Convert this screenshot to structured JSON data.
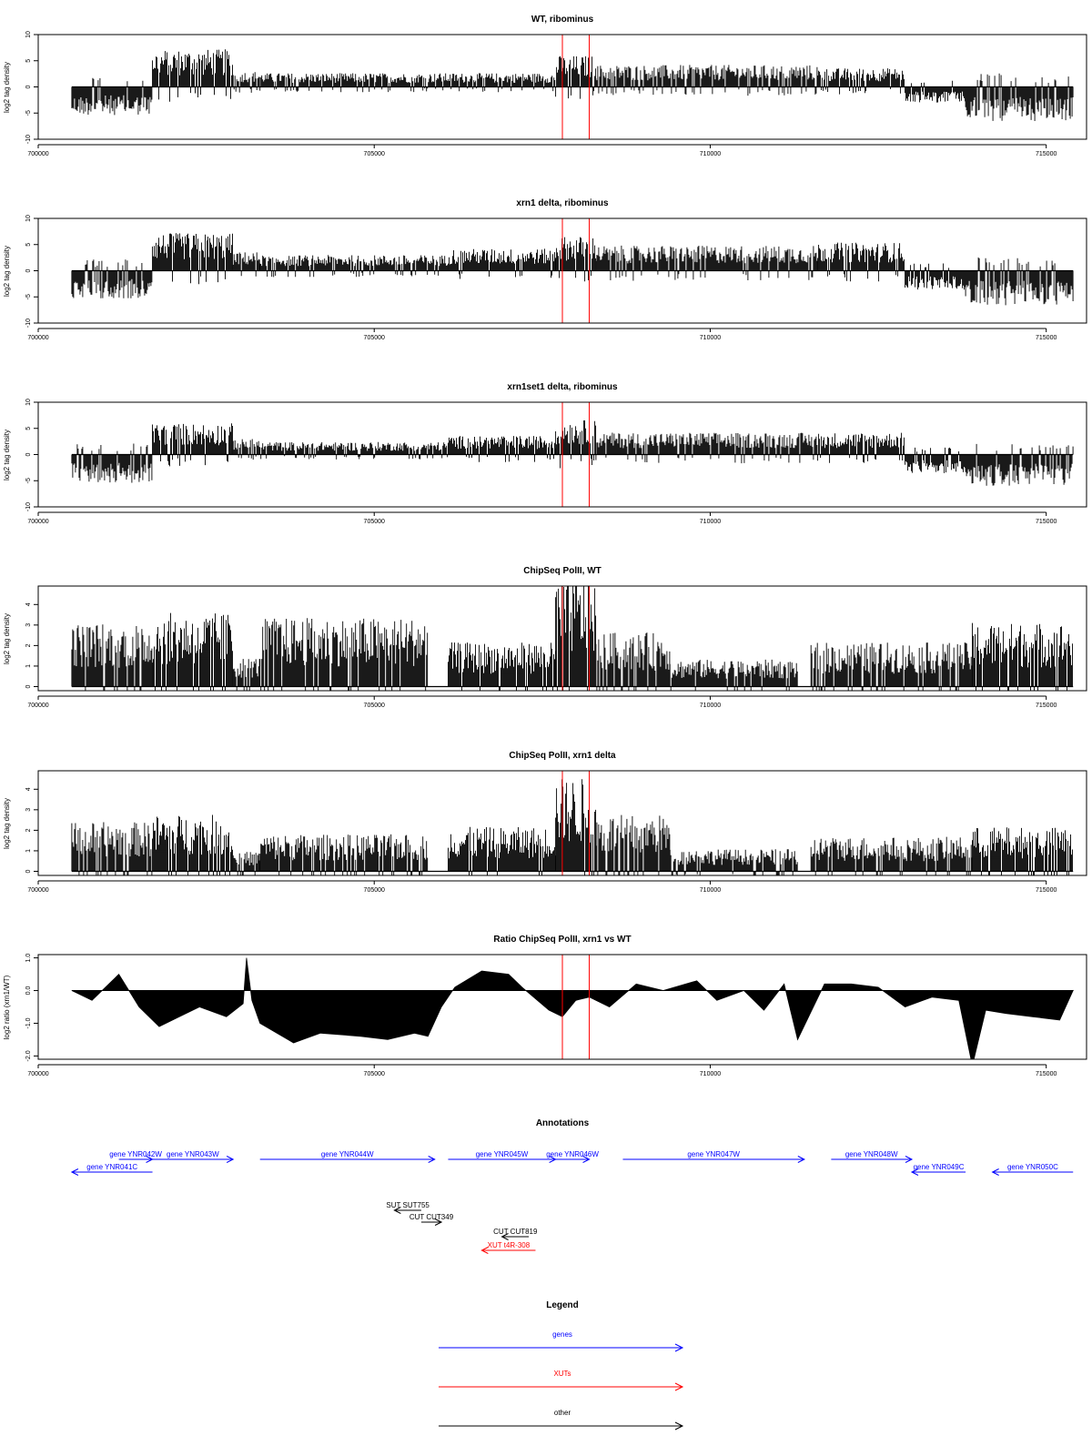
{
  "colors": {
    "gene": "#0000ff",
    "xut": "#ff0000",
    "other": "#000000",
    "marker": "#ff0000",
    "signal": "#000000"
  },
  "chart_data": [
    {
      "type": "bar",
      "title": "WT, ribominus",
      "ylabel": "log2 tag density",
      "xlim": [
        700000,
        715600
      ],
      "ylim": [
        -10,
        10
      ],
      "y_ticks": [
        10,
        5,
        0,
        -5,
        -10
      ],
      "y_tick_labels": [
        "10",
        "5",
        "0",
        "-5",
        "-10"
      ],
      "x_ticks": [
        700000,
        705000,
        710000,
        715000
      ],
      "x_tick_labels": [
        "700000",
        "705000",
        "710000",
        "715000"
      ],
      "markers": [
        707800,
        708200
      ],
      "signal_x_range": [
        700500,
        715400
      ],
      "signal_segments": [
        {
          "start": 700500,
          "end": 701700,
          "level": -4.5
        },
        {
          "start": 701700,
          "end": 702900,
          "level": 6.0
        },
        {
          "start": 702900,
          "end": 703300,
          "level": 2.5
        },
        {
          "start": 703300,
          "end": 707700,
          "level": 2.2
        },
        {
          "start": 707700,
          "end": 708300,
          "level": 5.0
        },
        {
          "start": 708300,
          "end": 711600,
          "level": 3.5
        },
        {
          "start": 711600,
          "end": 712900,
          "level": 3.0
        },
        {
          "start": 712900,
          "end": 713800,
          "level": -2.5
        },
        {
          "start": 713800,
          "end": 715400,
          "level": -5.5
        }
      ]
    },
    {
      "type": "bar",
      "title": "xrn1 delta, ribominus",
      "ylabel": "log2 tag density",
      "xlim": [
        700000,
        715600
      ],
      "ylim": [
        -10,
        10
      ],
      "y_ticks": [
        10,
        5,
        0,
        -5,
        -10
      ],
      "y_tick_labels": [
        "10",
        "5",
        "0",
        "-5",
        "-10"
      ],
      "x_ticks": [
        700000,
        705000,
        710000,
        715000
      ],
      "x_tick_labels": [
        "700000",
        "705000",
        "710000",
        "715000"
      ],
      "markers": [
        707800,
        708200
      ],
      "signal_x_range": [
        700500,
        715400
      ],
      "signal_segments": [
        {
          "start": 700500,
          "end": 701700,
          "level": -4.5
        },
        {
          "start": 701700,
          "end": 702900,
          "level": 6.0
        },
        {
          "start": 702900,
          "end": 703300,
          "level": 3.0
        },
        {
          "start": 703300,
          "end": 706100,
          "level": 2.5
        },
        {
          "start": 706100,
          "end": 707700,
          "level": 3.5
        },
        {
          "start": 707700,
          "end": 708300,
          "level": 5.5
        },
        {
          "start": 708300,
          "end": 711600,
          "level": 4.0
        },
        {
          "start": 711600,
          "end": 712900,
          "level": 4.5
        },
        {
          "start": 712900,
          "end": 713800,
          "level": -3.0
        },
        {
          "start": 713800,
          "end": 715400,
          "level": -5.5
        }
      ]
    },
    {
      "type": "bar",
      "title": "xrn1set1 delta, ribominus",
      "ylabel": "log2 tag density",
      "xlim": [
        700000,
        715600
      ],
      "ylim": [
        -10,
        10
      ],
      "y_ticks": [
        10,
        5,
        0,
        -5,
        -10
      ],
      "y_tick_labels": [
        "10",
        "5",
        "0",
        "-5",
        "-10"
      ],
      "x_ticks": [
        700000,
        705000,
        710000,
        715000
      ],
      "x_tick_labels": [
        "700000",
        "705000",
        "710000",
        "715000"
      ],
      "markers": [
        707800,
        708200
      ],
      "signal_x_range": [
        700500,
        715400
      ],
      "signal_segments": [
        {
          "start": 700500,
          "end": 701700,
          "level": -4.5
        },
        {
          "start": 701700,
          "end": 702900,
          "level": 5.0
        },
        {
          "start": 702900,
          "end": 703300,
          "level": 2.5
        },
        {
          "start": 703300,
          "end": 706100,
          "level": 2.0
        },
        {
          "start": 706100,
          "end": 707700,
          "level": 3.0
        },
        {
          "start": 707700,
          "end": 708300,
          "level": 5.5
        },
        {
          "start": 708300,
          "end": 711600,
          "level": 3.5
        },
        {
          "start": 711600,
          "end": 712900,
          "level": 3.5
        },
        {
          "start": 712900,
          "end": 713800,
          "level": -3.0
        },
        {
          "start": 713800,
          "end": 715400,
          "level": -5.0
        }
      ]
    },
    {
      "type": "bar",
      "title": "ChipSeq PolII, WT",
      "ylabel": "log2 tag density",
      "xlim": [
        700000,
        715600
      ],
      "ylim": [
        -0.2,
        4.9
      ],
      "y_ticks": [
        0,
        1,
        2,
        3,
        4
      ],
      "y_tick_labels": [
        "0",
        "1",
        "2",
        "3",
        "4"
      ],
      "x_ticks": [
        700000,
        705000,
        710000,
        715000
      ],
      "x_tick_labels": [
        "700000",
        "705000",
        "710000",
        "715000"
      ],
      "markers": [
        707800,
        708200
      ],
      "signal_x_range": [
        700500,
        715400
      ],
      "signal_segments": [
        {
          "start": 700500,
          "end": 701700,
          "level": 2.6
        },
        {
          "start": 701700,
          "end": 702900,
          "level": 3.0
        },
        {
          "start": 702900,
          "end": 703300,
          "level": 1.2
        },
        {
          "start": 703300,
          "end": 705800,
          "level": 2.8
        },
        {
          "start": 705800,
          "end": 706100,
          "level": 0.0
        },
        {
          "start": 706100,
          "end": 707700,
          "level": 1.8
        },
        {
          "start": 707700,
          "end": 708300,
          "level": 4.4
        },
        {
          "start": 708300,
          "end": 709400,
          "level": 2.2
        },
        {
          "start": 709400,
          "end": 711300,
          "level": 1.1
        },
        {
          "start": 711300,
          "end": 711500,
          "level": 0.0
        },
        {
          "start": 711500,
          "end": 713900,
          "level": 1.8
        },
        {
          "start": 713900,
          "end": 715400,
          "level": 2.6
        }
      ]
    },
    {
      "type": "bar",
      "title": "ChipSeq PolII, xrn1 delta",
      "ylabel": "log2 tag density",
      "xlim": [
        700000,
        715600
      ],
      "ylim": [
        -0.2,
        4.9
      ],
      "y_ticks": [
        0,
        1,
        2,
        3,
        4
      ],
      "y_tick_labels": [
        "0",
        "1",
        "2",
        "3",
        "4"
      ],
      "x_ticks": [
        700000,
        705000,
        710000,
        715000
      ],
      "x_tick_labels": [
        "700000",
        "705000",
        "710000",
        "715000"
      ],
      "markers": [
        707800,
        708200
      ],
      "signal_x_range": [
        700500,
        715400
      ],
      "signal_segments": [
        {
          "start": 700500,
          "end": 701700,
          "level": 2.0
        },
        {
          "start": 701700,
          "end": 702900,
          "level": 2.3
        },
        {
          "start": 702900,
          "end": 703300,
          "level": 0.8
        },
        {
          "start": 703300,
          "end": 705800,
          "level": 1.5
        },
        {
          "start": 705800,
          "end": 706100,
          "level": 0.0
        },
        {
          "start": 706100,
          "end": 707700,
          "level": 1.8
        },
        {
          "start": 707700,
          "end": 708300,
          "level": 3.8
        },
        {
          "start": 708300,
          "end": 709400,
          "level": 2.3
        },
        {
          "start": 709400,
          "end": 711300,
          "level": 0.9
        },
        {
          "start": 711300,
          "end": 711500,
          "level": 0.0
        },
        {
          "start": 711500,
          "end": 713900,
          "level": 1.4
        },
        {
          "start": 713900,
          "end": 715400,
          "level": 1.8
        }
      ]
    },
    {
      "type": "area",
      "title": "Ratio ChipSeq PolII, xrn1 vs WT",
      "ylabel": "log2 ratio (xrn1/WT)",
      "xlim": [
        700000,
        715600
      ],
      "ylim": [
        -2.1,
        1.1
      ],
      "y_ticks": [
        1,
        0,
        -1,
        -2
      ],
      "y_tick_labels": [
        "1.0",
        "0.0",
        "-1.0",
        "-2.0"
      ],
      "x_ticks": [
        700000,
        705000,
        710000,
        715000
      ],
      "x_tick_labels": [
        "700000",
        "705000",
        "710000",
        "715000"
      ],
      "markers": [
        707800,
        708200
      ],
      "x": [
        700500,
        700800,
        701200,
        701500,
        701800,
        702100,
        702400,
        702800,
        703050,
        703100,
        703180,
        703300,
        703800,
        704200,
        704800,
        705200,
        705600,
        705800,
        706000,
        706200,
        706600,
        707000,
        707200,
        707600,
        707800,
        708000,
        708200,
        708500,
        708900,
        709300,
        709800,
        710100,
        710500,
        710800,
        711100,
        711300,
        711700,
        712100,
        712500,
        712900,
        713300,
        713700,
        713900,
        714100,
        714400,
        714800,
        715200,
        715400
      ],
      "y": [
        0.0,
        -0.3,
        0.5,
        -0.5,
        -1.1,
        -0.8,
        -0.5,
        -0.8,
        -0.4,
        1.0,
        -0.3,
        -1.0,
        -1.6,
        -1.3,
        -1.4,
        -1.5,
        -1.3,
        -1.4,
        -0.5,
        0.1,
        0.6,
        0.5,
        0.1,
        -0.6,
        -0.8,
        -0.3,
        -0.2,
        -0.5,
        0.2,
        0.0,
        0.3,
        -0.3,
        0.0,
        -0.6,
        0.2,
        -1.5,
        0.2,
        0.2,
        0.1,
        -0.5,
        -0.2,
        -0.3,
        -2.3,
        -0.6,
        -0.7,
        -0.8,
        -0.9,
        0.0
      ]
    }
  ],
  "annotations": {
    "title": "Annotations",
    "xlim": [
      700000,
      715600
    ],
    "features": [
      {
        "label": "gene YNR042W",
        "start": 701200,
        "end": 701700,
        "dir": "+",
        "kind": "gene",
        "row": 0
      },
      {
        "label": "gene YNR041C",
        "start": 700500,
        "end": 701700,
        "dir": "-",
        "kind": "gene",
        "row": 1
      },
      {
        "label": "gene YNR043W",
        "start": 701700,
        "end": 702900,
        "dir": "+",
        "kind": "gene",
        "row": 0
      },
      {
        "label": "gene YNR044W",
        "start": 703300,
        "end": 705900,
        "dir": "+",
        "kind": "gene",
        "row": 0
      },
      {
        "label": "gene YNR045W",
        "start": 706100,
        "end": 707700,
        "dir": "+",
        "kind": "gene",
        "row": 0
      },
      {
        "label": "gene YNR046W",
        "start": 707700,
        "end": 708200,
        "dir": "+",
        "kind": "gene",
        "row": 0
      },
      {
        "label": "gene YNR047W",
        "start": 708700,
        "end": 711400,
        "dir": "+",
        "kind": "gene",
        "row": 0
      },
      {
        "label": "gene YNR048W",
        "start": 711800,
        "end": 713000,
        "dir": "+",
        "kind": "gene",
        "row": 0
      },
      {
        "label": "gene YNR049C",
        "start": 713000,
        "end": 713800,
        "dir": "-",
        "kind": "gene",
        "row": 1
      },
      {
        "label": "gene YNR050C",
        "start": 714200,
        "end": 715400,
        "dir": "-",
        "kind": "gene",
        "row": 1
      },
      {
        "label": "SUT SUT755",
        "start": 705300,
        "end": 705700,
        "dir": "-",
        "kind": "other",
        "row": 2
      },
      {
        "label": "CUT CUT349",
        "start": 705700,
        "end": 706000,
        "dir": "+",
        "kind": "other",
        "row": 3
      },
      {
        "label": "CUT CUT819",
        "start": 706900,
        "end": 707300,
        "dir": "-",
        "kind": "other",
        "row": 4
      },
      {
        "label": "XUT t4R-308",
        "start": 706600,
        "end": 707400,
        "dir": "-",
        "kind": "xut",
        "row": 5
      }
    ]
  },
  "legend": {
    "title": "Legend",
    "items": [
      {
        "label": "genes",
        "kind": "gene"
      },
      {
        "label": "XUTs",
        "kind": "xut"
      },
      {
        "label": "other",
        "kind": "other"
      }
    ]
  }
}
